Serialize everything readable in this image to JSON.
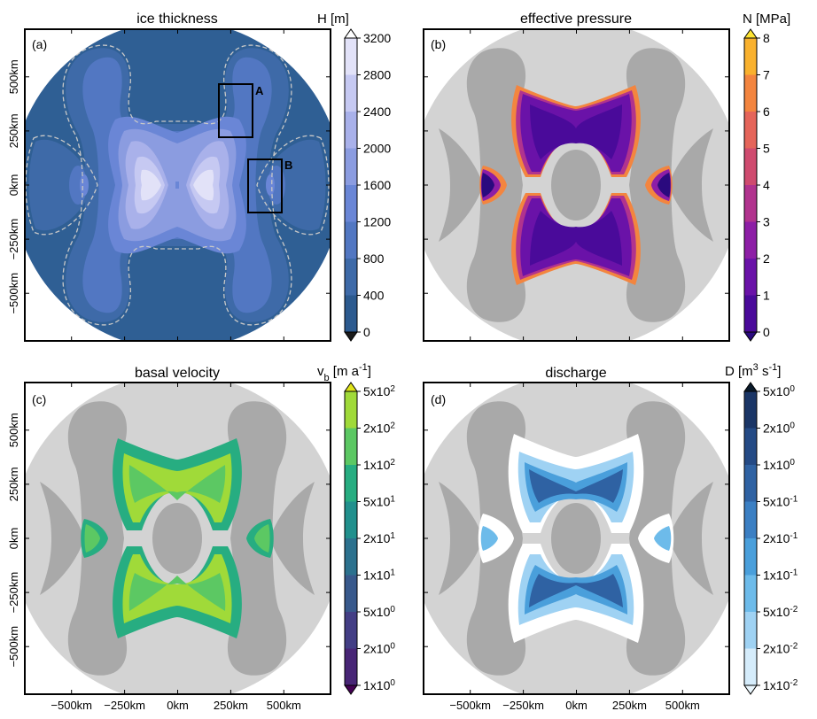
{
  "colors": {
    "ice_bg": "#2f5f94",
    "ice_dark": "#2c5a8f",
    "land_light": "#d3d3d3",
    "land_dark": "#a9a9a9",
    "hole": "#ffffff"
  },
  "panels": [
    {
      "letter": "(a)",
      "title": "ice thickness",
      "cbar_label": "H [m]",
      "cbar_ticks": [
        "0",
        "400",
        "800",
        "1200",
        "1600",
        "2000",
        "2400",
        "2800",
        "3200"
      ],
      "cbar_colors": [
        "#2c5a8f",
        "#3e6aa8",
        "#5277c2",
        "#6a86d6",
        "#8b9ce0",
        "#a9b1ea",
        "#c6c9f2",
        "#e2e2f8"
      ],
      "extend_low": "#1b1b1b",
      "extend_high": "#ffffff",
      "boxes": [
        {
          "label": "A"
        },
        {
          "label": "B"
        }
      ]
    },
    {
      "letter": "(b)",
      "title": "effective pressure",
      "cbar_label": "N [MPa]",
      "cbar_ticks": [
        "0",
        "1",
        "2",
        "3",
        "4",
        "5",
        "6",
        "7",
        "8"
      ],
      "cbar_colors": [
        "#4a0a9a",
        "#6a12a8",
        "#8d1ea6",
        "#b1338e",
        "#cf4b6f",
        "#e5655a",
        "#f3853f",
        "#f9b12e"
      ],
      "extend_low": "#2a0a7e",
      "extend_high": "#fde433"
    },
    {
      "letter": "(c)",
      "title": "basal velocity",
      "cbar_label_html": "v<tspan baseline-shift='sub' font-size='11'>b</tspan> [m a<tspan baseline-shift='super' font-size='11'>-1</tspan>]",
      "cbar_ticks": [
        "1x10",
        "2x10",
        "5x10",
        "1x10",
        "2x10",
        "5x10",
        "1x10",
        "2x10",
        "5x10"
      ],
      "cbar_exps": [
        "0",
        "0",
        "0",
        "1",
        "1",
        "1",
        "2",
        "2",
        "2"
      ],
      "cbar_colors": [
        "#482576",
        "#433e85",
        "#38598c",
        "#2c718e",
        "#21908d",
        "#27ad81",
        "#5cc863",
        "#a0da39"
      ],
      "extend_low": "#440154",
      "extend_high": "#dfe318"
    },
    {
      "letter": "(d)",
      "title": "discharge",
      "cbar_ticks": [
        "1x10",
        "2x10",
        "5x10",
        "1x10",
        "2x10",
        "5x10",
        "1x10",
        "2x10",
        "5x10"
      ],
      "cbar_exps": [
        "-2",
        "-2",
        "-2",
        "-1",
        "-1",
        "-1",
        "0",
        "0",
        "0"
      ],
      "cbar_colors": [
        "#d5ecfb",
        "#9fd2f3",
        "#6dbbea",
        "#4a9fdb",
        "#3b7fc3",
        "#2f62a3",
        "#244a85",
        "#1a3566"
      ],
      "extend_low": "#eaf6fd",
      "extend_high": "#0a1a2a"
    }
  ],
  "axes": {
    "x_ticks": [
      "−500km",
      "−250km",
      "0km",
      "250km",
      "500km"
    ],
    "y_ticks": [
      "500km",
      "250km",
      "0km",
      "−250km",
      "−500km"
    ]
  },
  "chart_data": {
    "type": "heatmap",
    "domain_km": {
      "xlim": [
        -720,
        720
      ],
      "ylim": [
        -720,
        720
      ]
    },
    "fields": [
      "ice thickness",
      "effective pressure",
      "basal velocity",
      "discharge"
    ],
    "units": [
      "H [m]",
      "N [MPa]",
      "v_b [m a^-1]",
      "D [m^3 s^-1]"
    ],
    "tick_km": [
      -500,
      -250,
      0,
      250,
      500
    ]
  }
}
